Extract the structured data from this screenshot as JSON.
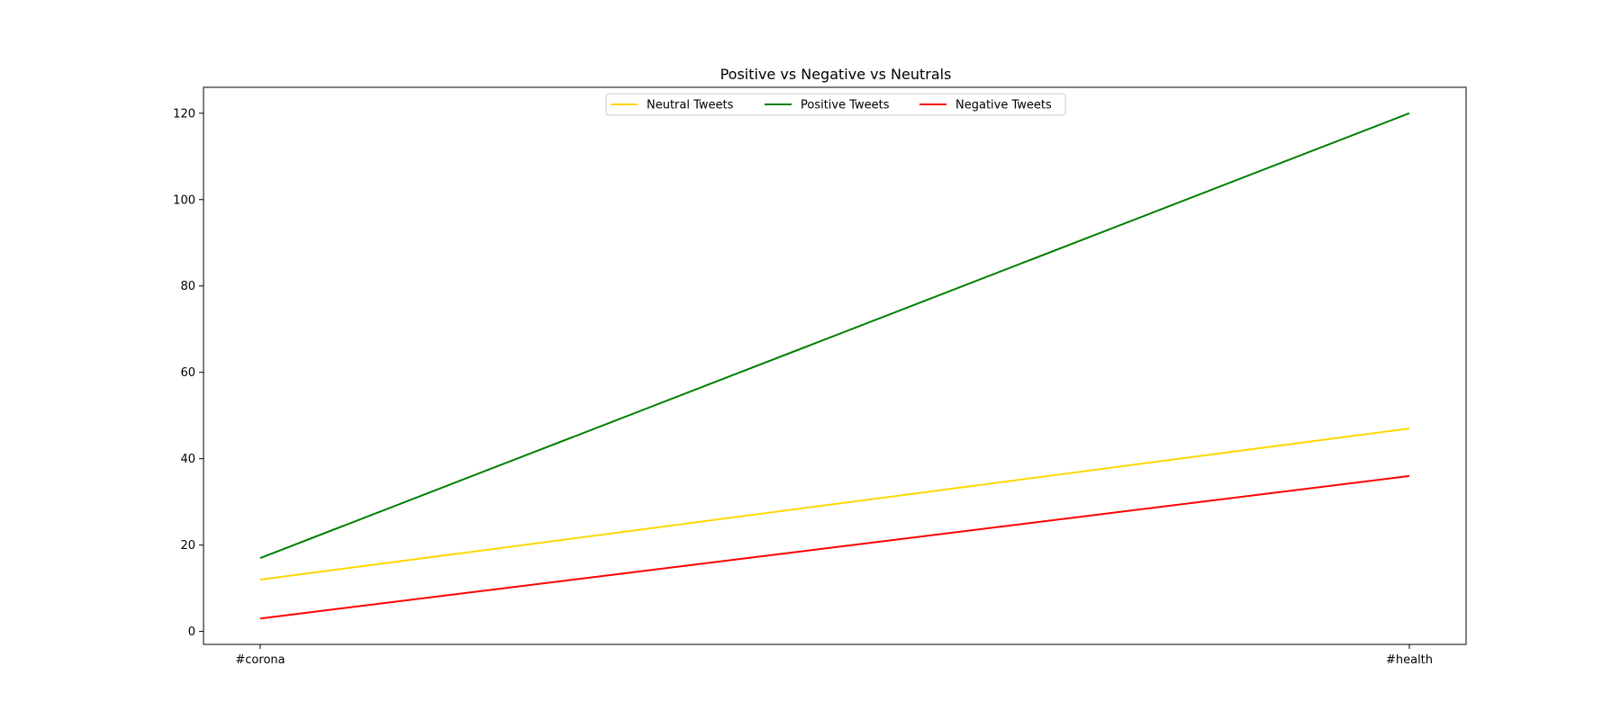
{
  "chart_data": {
    "type": "line",
    "title": "Positive vs Negative vs Neutrals",
    "xlabel": "",
    "ylabel": "",
    "categories": [
      "#corona",
      "#health"
    ],
    "ylim": [
      -3,
      126
    ],
    "yticks": [
      0,
      20,
      40,
      60,
      80,
      100,
      120
    ],
    "grid": false,
    "legend_position": "top-center",
    "series": [
      {
        "name": "Neutral Tweets",
        "color": "#FFD700",
        "values": [
          12,
          47
        ]
      },
      {
        "name": "Positive Tweets",
        "color": "#008000",
        "values": [
          17,
          120
        ]
      },
      {
        "name": "Negative Tweets",
        "color": "#FF0000",
        "values": [
          3,
          36
        ]
      }
    ]
  }
}
